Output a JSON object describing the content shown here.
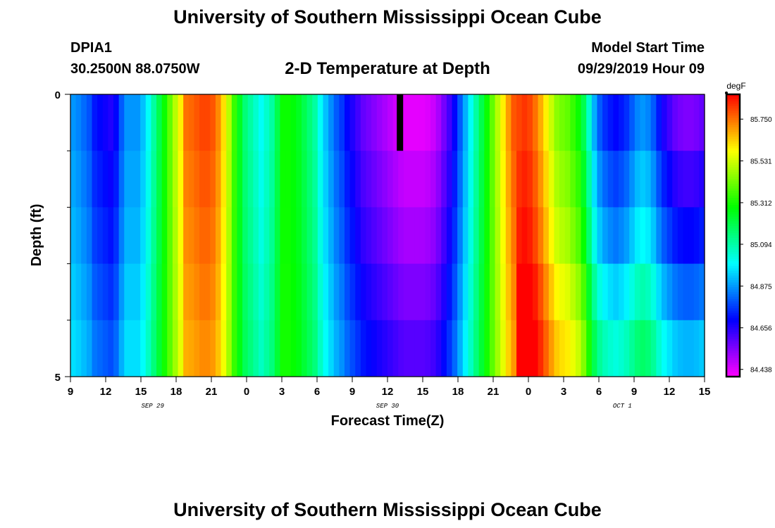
{
  "header": {
    "title": "University of Southern Mississippi Ocean Cube",
    "station_id": "DPIA1",
    "station_coords": "30.2500N 88.0750W",
    "plot_title": "2-D Temperature at Depth",
    "start_label": "Model Start Time",
    "start_value": "09/29/2019 Hour 09"
  },
  "footer": {
    "title": "University of Southern Mississippi Ocean Cube"
  },
  "chart_data": {
    "type": "heatmap",
    "xlabel": "Forecast Time(Z)",
    "ylabel": "Depth (ft)",
    "x_hours_from_start": [
      0,
      54
    ],
    "x_tick_labels": [
      "9",
      "12",
      "15",
      "18",
      "21",
      "0",
      "3",
      "6",
      "9",
      "12",
      "15",
      "18",
      "21",
      "0",
      "3",
      "6",
      "9",
      "12",
      "15"
    ],
    "x_tick_hours": [
      0,
      3,
      6,
      9,
      12,
      15,
      18,
      21,
      24,
      27,
      30,
      33,
      36,
      39,
      42,
      45,
      48,
      51,
      54
    ],
    "date_labels": [
      {
        "label": "SEP 29",
        "hour": 7
      },
      {
        "label": "SEP 30",
        "hour": 27
      },
      {
        "label": "OCT 1",
        "hour": 47
      }
    ],
    "y_tick_labels": [
      "0",
      "5"
    ],
    "ylim": [
      0,
      5
    ],
    "depth_levels": 5,
    "colorbar": {
      "units": "degF",
      "ticks": [
        85.75,
        85.531,
        85.312,
        85.094,
        84.875,
        84.656,
        84.438
      ],
      "tick_labels": [
        "85.750",
        "85.531",
        "85.312",
        "85.094",
        "84.875",
        "84.656",
        "84.438"
      ],
      "min": 84.4,
      "max": 85.88
    },
    "missing_mark": {
      "hour": 28,
      "depth_band": 0,
      "color": "#000000"
    },
    "surface_profile": [
      84.87,
      84.85,
      84.82,
      84.79,
      84.72,
      84.7,
      84.68,
      84.66,
      84.7,
      84.8,
      84.87,
      84.87,
      84.87,
      84.92,
      85.0,
      85.1,
      85.2,
      85.3,
      85.4,
      85.5,
      85.6,
      85.75,
      85.76,
      85.78,
      85.8,
      85.8,
      85.78,
      85.72,
      85.62,
      85.5,
      85.35,
      85.25,
      85.15,
      85.1,
      85.05,
      85.0,
      85.05,
      85.1,
      85.2,
      85.3,
      85.3,
      85.28,
      85.25,
      85.2,
      85.15,
      85.1,
      85.0,
      84.92,
      84.86,
      84.8,
      84.76,
      84.7,
      84.66,
      84.62,
      84.58,
      84.56,
      84.54,
      84.52,
      84.5,
      84.48,
      84.46,
      84.44,
      84.43,
      84.43,
      84.43,
      84.43,
      84.44,
      84.46,
      84.5,
      84.56,
      84.62,
      84.7,
      84.8,
      84.9,
      85.0,
      85.1,
      85.2,
      85.3,
      85.4,
      85.5,
      85.6,
      85.7,
      85.78,
      85.8,
      85.82,
      85.8,
      85.75,
      85.68,
      85.6,
      85.52,
      85.45,
      85.42,
      85.4,
      85.35,
      85.3,
      85.2,
      85.05,
      84.9,
      84.8,
      84.75,
      84.72,
      84.7,
      84.72,
      84.75,
      84.8,
      84.85,
      84.87,
      84.85,
      84.8,
      84.72,
      84.66,
      84.62,
      84.58,
      84.56,
      84.55,
      84.55,
      84.56,
      84.58
    ],
    "rows": [
      {
        "offset": 0.0,
        "warm_bias": 0.0
      },
      {
        "offset": 0.04,
        "warm_bias": 0.05
      },
      {
        "offset": 0.08,
        "warm_bias": 0.1
      },
      {
        "offset": 0.13,
        "warm_bias": 0.18
      },
      {
        "offset": 0.18,
        "warm_bias": 0.25
      }
    ]
  }
}
